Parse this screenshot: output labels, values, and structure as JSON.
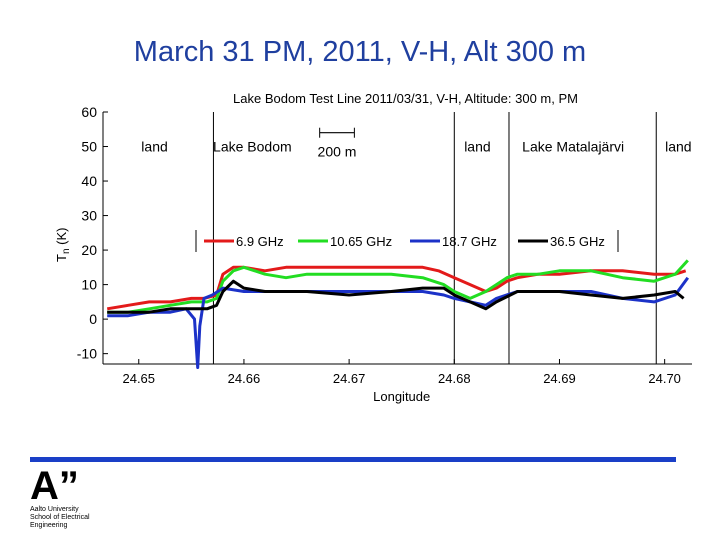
{
  "slide": {
    "title": "March 31 PM, 2011, V-H, Alt 300 m"
  },
  "logo": {
    "mark": "A”",
    "lines": [
      "Aalto University",
      "School of Electrical",
      "Engineering"
    ]
  },
  "chart_data": {
    "type": "line",
    "title": "Lake Bodom Test Line 2011/03/31, V-H, Altitude: 300 m, PM",
    "xlabel": "Longitude",
    "ylabel": "T",
    "ylabel_sub": "n",
    "ylabel_unit": "(K)",
    "xlim": [
      24.6466,
      24.7026
    ],
    "ylim": [
      -13,
      60
    ],
    "xticks": [
      24.65,
      24.66,
      24.67,
      24.68,
      24.69,
      24.7
    ],
    "xtick_labels": [
      "24.65",
      "24.66",
      "24.67",
      "24.68",
      "24.69",
      "24.70"
    ],
    "yticks": [
      60,
      50,
      40,
      30,
      20,
      10,
      0,
      -10
    ],
    "ytick_labels": [
      "60",
      "50",
      "40",
      "30",
      "20",
      "10",
      "0",
      "-10"
    ],
    "vlines": [
      {
        "x": 24.6571,
        "style": "solid"
      },
      {
        "x": 24.68,
        "style": "solid"
      },
      {
        "x": 24.6852,
        "style": "solid"
      },
      {
        "x": 24.6992,
        "style": "solid"
      }
    ],
    "regions": [
      {
        "label": "land",
        "x": 24.6515,
        "y": 50
      },
      {
        "label": "Lake Bodom",
        "x": 24.6608,
        "y": 50
      },
      {
        "label": "land",
        "x": 24.6822,
        "y": 50
      },
      {
        "label": "Lake Matalajärvi",
        "x": 24.6913,
        "y": 50
      },
      {
        "label": "land",
        "x": 24.7013,
        "y": 50
      }
    ],
    "scalebar": {
      "label": "200 m",
      "x1": 24.6672,
      "x2": 24.6705,
      "y": 54
    },
    "legend_position": "center",
    "series": [
      {
        "name": "6.9 GHz",
        "color": "#e31a1a",
        "x": [
          24.647,
          24.649,
          24.651,
          24.653,
          24.655,
          24.6562,
          24.6574,
          24.658,
          24.659,
          24.66,
          24.662,
          24.664,
          24.666,
          24.67,
          24.674,
          24.677,
          24.6785,
          24.68,
          24.6815,
          24.683,
          24.684,
          24.685,
          24.686,
          24.688,
          24.69,
          24.693,
          24.696,
          24.699,
          24.701,
          24.702
        ],
        "y": [
          3,
          4,
          5,
          5,
          6,
          6,
          7,
          13,
          15,
          15,
          14,
          15,
          15,
          15,
          15,
          15,
          14,
          12,
          10,
          8,
          9,
          11,
          12,
          13,
          13,
          14,
          14,
          13,
          13,
          14
        ]
      },
      {
        "name": "10.65 GHz",
        "color": "#22dd22",
        "x": [
          24.647,
          24.649,
          24.651,
          24.653,
          24.655,
          24.6565,
          24.6574,
          24.658,
          24.659,
          24.66,
          24.662,
          24.664,
          24.666,
          24.67,
          24.674,
          24.677,
          24.679,
          24.68,
          24.6815,
          24.683,
          24.684,
          24.685,
          24.686,
          24.688,
          24.69,
          24.693,
          24.696,
          24.699,
          24.701,
          24.7022
        ],
        "y": [
          2,
          2,
          3,
          4,
          5,
          5,
          6,
          11,
          14,
          15,
          13,
          12,
          13,
          13,
          13,
          12,
          10,
          8,
          6,
          8,
          10,
          12,
          13,
          13,
          14,
          14,
          12,
          11,
          13,
          17
        ]
      },
      {
        "name": "18.7 GHz",
        "color": "#1c32c8",
        "x": [
          24.647,
          24.649,
          24.651,
          24.653,
          24.6545,
          24.6553,
          24.6556,
          24.6558,
          24.6562,
          24.657,
          24.658,
          24.66,
          24.662,
          24.666,
          24.67,
          24.674,
          24.677,
          24.679,
          24.68,
          24.6815,
          24.683,
          24.684,
          24.686,
          24.688,
          24.69,
          24.693,
          24.696,
          24.699,
          24.701,
          24.7022
        ],
        "y": [
          1,
          1,
          2,
          2,
          3,
          0,
          -14,
          -2,
          6,
          7,
          9,
          8,
          8,
          8,
          8,
          8,
          8,
          7,
          6,
          5,
          4,
          6,
          8,
          8,
          8,
          8,
          6,
          5,
          7,
          12
        ]
      },
      {
        "name": "36.5 GHz",
        "color": "#000000",
        "x": [
          24.647,
          24.649,
          24.651,
          24.653,
          24.655,
          24.6565,
          24.6574,
          24.658,
          24.659,
          24.66,
          24.662,
          24.666,
          24.67,
          24.674,
          24.677,
          24.679,
          24.68,
          24.6815,
          24.683,
          24.684,
          24.686,
          24.688,
          24.69,
          24.693,
          24.696,
          24.699,
          24.701,
          24.7018
        ],
        "y": [
          2,
          2,
          2,
          3,
          3,
          3,
          4,
          8,
          11,
          9,
          8,
          8,
          7,
          8,
          9,
          9,
          7,
          5,
          3,
          5,
          8,
          8,
          8,
          7,
          6,
          7,
          8,
          6
        ]
      }
    ]
  }
}
